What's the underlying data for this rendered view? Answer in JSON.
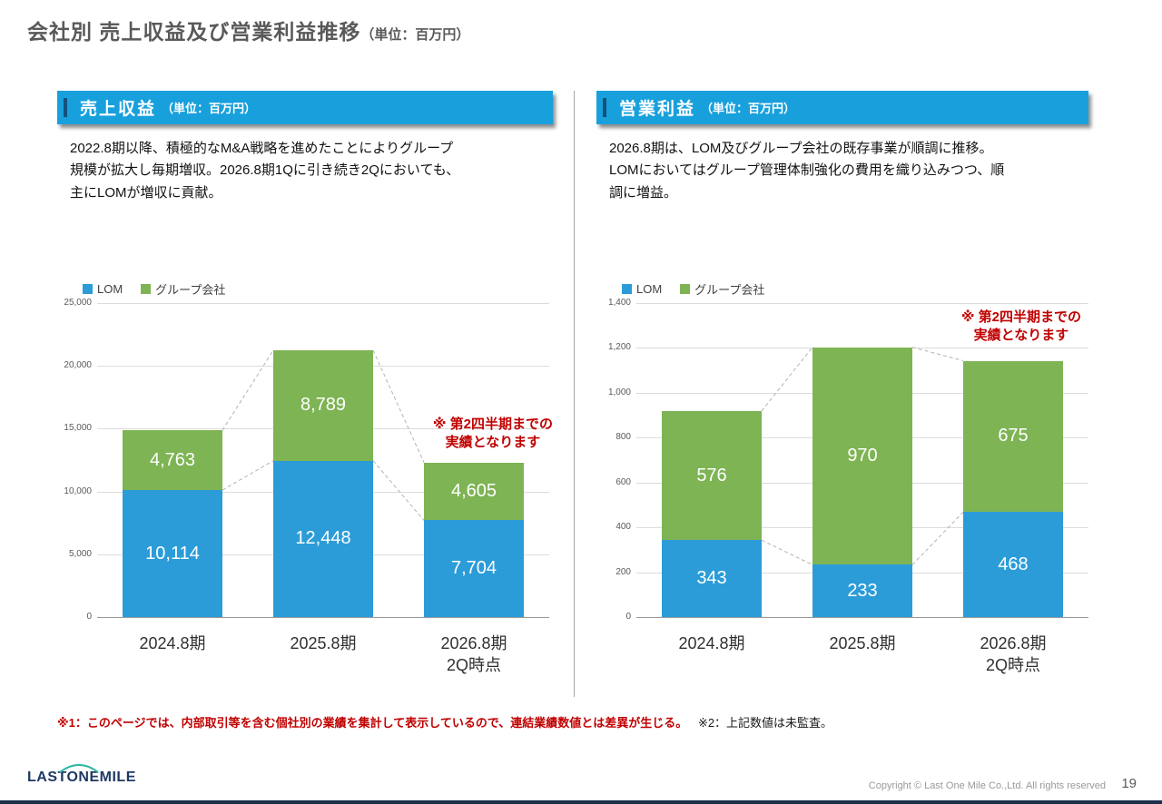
{
  "slide": {
    "title": "会社別 売上収益及び営業利益推移",
    "title_unit": "（単位：百万円）",
    "footnote_red": "※1：このページでは、内部取引等を含む個社別の業績を集計して表示しているので、連結業績数値とは差異が生じる。",
    "footnote_black": "※2：上記数値は未監査。",
    "logo_text": "LASTONEMILE",
    "copyright": "Copyright © Last One Mile Co.,Ltd. All rights reserved",
    "page_number": "19"
  },
  "panels": [
    {
      "header": "売上収益",
      "header_unit": "（単位：百万円）",
      "description": "2022.8期以降、積極的なM&A戦略を進めたことによりグループ\n規模が拡大し毎期増収。2026.8期1Qに引き続き2Qにおいても、\n主にLOMが増収に貢献。",
      "annotation": "※ 第2四半期までの\n実績となります"
    },
    {
      "header": "営業利益",
      "header_unit": "（単位：百万円）",
      "description": "2026.8期は、LOM及びグループ会社の既存事業が順調に推移。\nLOMにおいてはグループ管理体制強化の費用を織り込みつつ、順\n調に増益。",
      "annotation": "※ 第2四半期までの\n実績となります"
    }
  ],
  "chart_data": [
    {
      "type": "bar",
      "stacked": true,
      "title": "売上収益（単位：百万円）",
      "categories": [
        "2024.8期",
        "2025.8期",
        "2026.8期\n2Q時点"
      ],
      "series": [
        {
          "name": "LOM",
          "color": "#2B9CD8",
          "values": [
            10114,
            12448,
            7704
          ]
        },
        {
          "name": "グループ会社",
          "color": "#7EB454",
          "values": [
            4763,
            8789,
            4605
          ]
        }
      ],
      "ylim": [
        0,
        25000
      ],
      "ytick_step": 5000,
      "legend_position": "top-left",
      "grid": true
    },
    {
      "type": "bar",
      "stacked": true,
      "title": "営業利益（単位：百万円）",
      "categories": [
        "2024.8期",
        "2025.8期",
        "2026.8期\n2Q時点"
      ],
      "series": [
        {
          "name": "LOM",
          "color": "#2B9CD8",
          "values": [
            343,
            233,
            468
          ]
        },
        {
          "name": "グループ会社",
          "color": "#7EB454",
          "values": [
            576,
            970,
            675
          ]
        }
      ],
      "ylim": [
        0,
        1400
      ],
      "ytick_step": 200,
      "legend_position": "top-left",
      "grid": true
    }
  ]
}
